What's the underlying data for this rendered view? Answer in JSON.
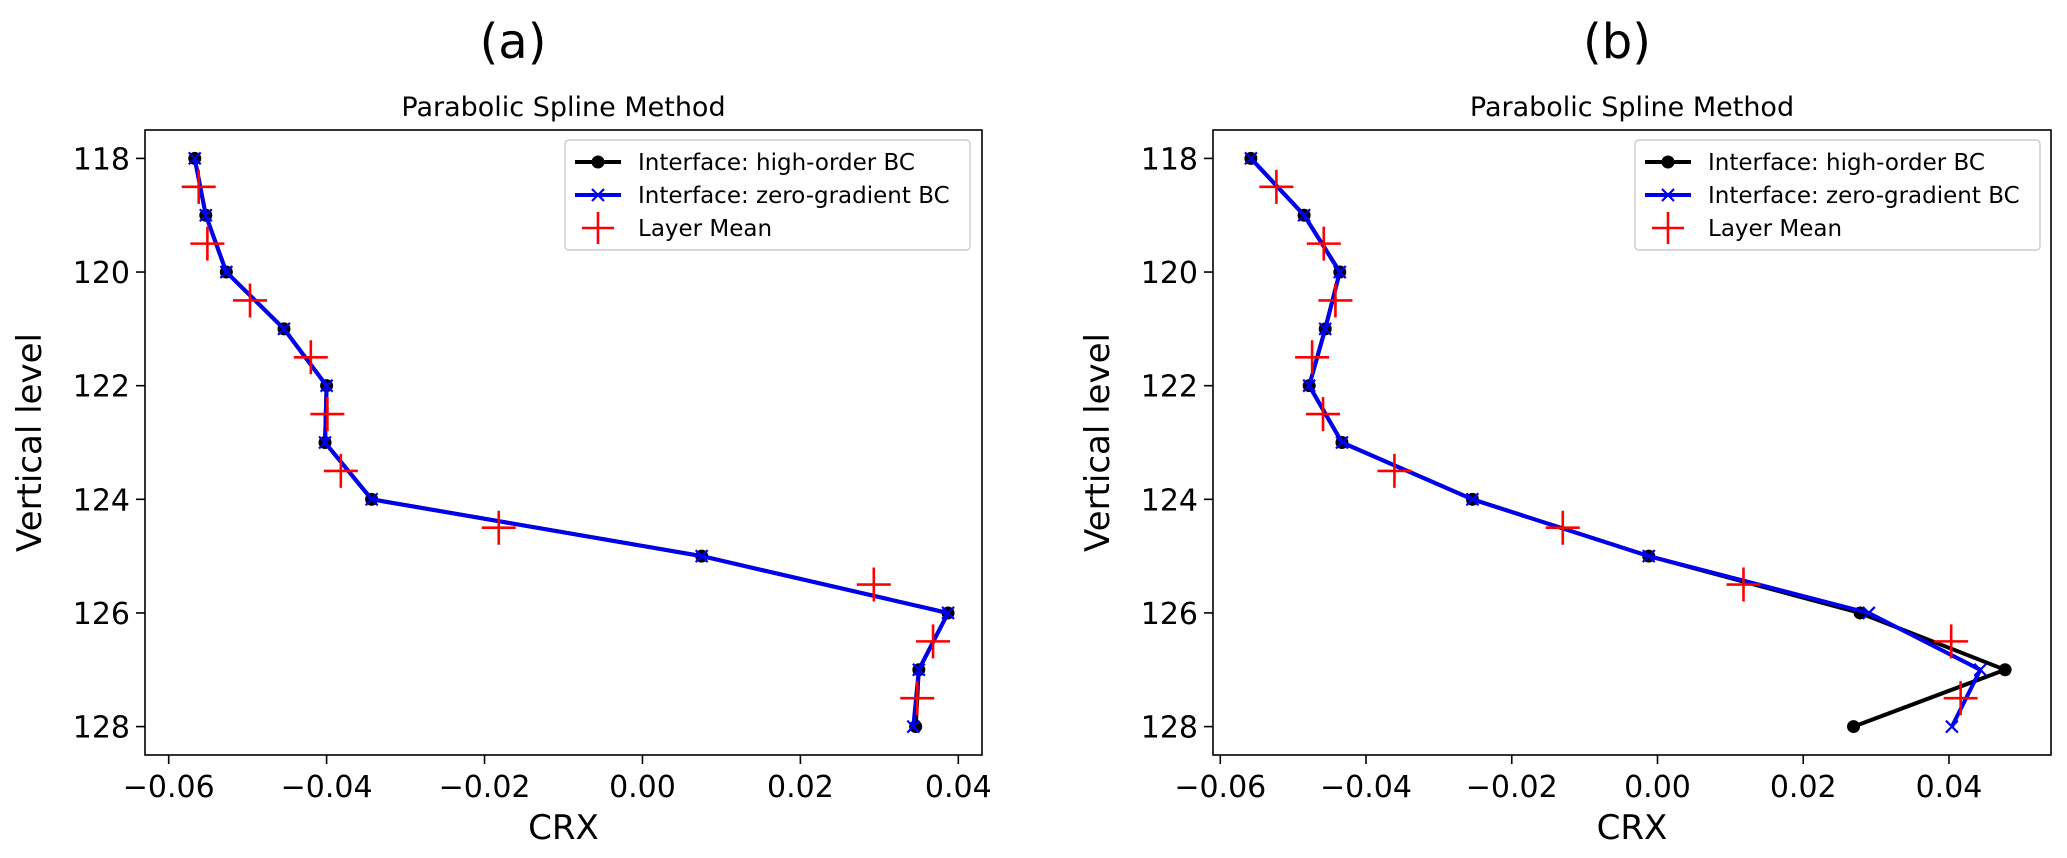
{
  "panels": [
    {
      "letter": "(a)",
      "chart_data": {
        "type": "line",
        "title": "Parabolic Spline Method",
        "xlabel": "CRX",
        "ylabel": "Vertical level",
        "xlim": [
          -0.063,
          0.043
        ],
        "ylim": [
          128.5,
          117.5
        ],
        "y_inverted": true,
        "xticks": [
          -0.06,
          -0.04,
          -0.02,
          0.0,
          0.02,
          0.04
        ],
        "xtick_labels": [
          "−0.06",
          "−0.04",
          "−0.02",
          "0.00",
          "0.02",
          "0.04"
        ],
        "yticks": [
          118,
          120,
          122,
          124,
          126,
          128
        ],
        "ytick_labels": [
          "118",
          "120",
          "122",
          "124",
          "126",
          "128"
        ],
        "legend_position": "top-right",
        "grid": false,
        "series": [
          {
            "name": "Interface: high-order BC",
            "color": "#000000",
            "marker": "circle",
            "points": [
              [
                -0.0567,
                118
              ],
              [
                -0.0553,
                119
              ],
              [
                -0.0527,
                120
              ],
              [
                -0.0454,
                121
              ],
              [
                -0.04,
                122
              ],
              [
                -0.0402,
                123
              ],
              [
                -0.0343,
                124
              ],
              [
                0.0075,
                125
              ],
              [
                0.0387,
                126
              ],
              [
                0.035,
                127
              ],
              [
                0.0346,
                128
              ]
            ]
          },
          {
            "name": "Interface: zero-gradient BC",
            "color": "#0000ee",
            "marker": "x",
            "points": [
              [
                -0.0567,
                118
              ],
              [
                -0.0553,
                119
              ],
              [
                -0.0527,
                120
              ],
              [
                -0.0454,
                121
              ],
              [
                -0.04,
                122
              ],
              [
                -0.0402,
                123
              ],
              [
                -0.0343,
                124
              ],
              [
                0.0075,
                125
              ],
              [
                0.0387,
                126
              ],
              [
                0.035,
                127
              ],
              [
                0.0343,
                128
              ]
            ]
          },
          {
            "name": "Layer Mean",
            "color": "#ff0000",
            "marker": "plus",
            "points": [
              [
                -0.0562,
                118.5
              ],
              [
                -0.0551,
                119.5
              ],
              [
                -0.0497,
                120.5
              ],
              [
                -0.042,
                121.5
              ],
              [
                -0.0399,
                122.5
              ],
              [
                -0.0382,
                123.5
              ],
              [
                -0.0182,
                124.5
              ],
              [
                0.0293,
                125.5
              ],
              [
                0.0368,
                126.5
              ],
              [
                0.0348,
                127.5
              ]
            ]
          }
        ]
      }
    },
    {
      "letter": "(b)",
      "chart_data": {
        "type": "line",
        "title": "Parabolic Spline Method",
        "xlabel": "CRX",
        "ylabel": "Vertical level",
        "xlim": [
          -0.061,
          0.054
        ],
        "ylim": [
          128.5,
          117.5
        ],
        "y_inverted": true,
        "xticks": [
          -0.06,
          -0.04,
          -0.02,
          0.0,
          0.02,
          0.04
        ],
        "xtick_labels": [
          "−0.06",
          "−0.04",
          "−0.02",
          "0.00",
          "0.02",
          "0.04"
        ],
        "yticks": [
          118,
          120,
          122,
          124,
          126,
          128
        ],
        "ytick_labels": [
          "118",
          "120",
          "122",
          "124",
          "126",
          "128"
        ],
        "legend_position": "top-right",
        "grid": false,
        "series": [
          {
            "name": "Interface: high-order BC",
            "color": "#000000",
            "marker": "circle",
            "points": [
              [
                -0.0558,
                118
              ],
              [
                -0.0485,
                119
              ],
              [
                -0.0436,
                120
              ],
              [
                -0.0456,
                121
              ],
              [
                -0.0478,
                122
              ],
              [
                -0.0433,
                123
              ],
              [
                -0.0254,
                124
              ],
              [
                -0.0012,
                125
              ],
              [
                0.0278,
                126
              ],
              [
                0.0477,
                127
              ],
              [
                0.0269,
                128
              ]
            ]
          },
          {
            "name": "Interface: zero-gradient BC",
            "color": "#0000ee",
            "marker": "x",
            "points": [
              [
                -0.0558,
                118
              ],
              [
                -0.0485,
                119
              ],
              [
                -0.0436,
                120
              ],
              [
                -0.0456,
                121
              ],
              [
                -0.0478,
                122
              ],
              [
                -0.0433,
                123
              ],
              [
                -0.0254,
                124
              ],
              [
                -0.0012,
                125
              ],
              [
                0.029,
                126
              ],
              [
                0.0443,
                127
              ],
              [
                0.0404,
                128
              ]
            ]
          },
          {
            "name": "Layer Mean",
            "color": "#ff0000",
            "marker": "plus",
            "points": [
              [
                -0.0523,
                118.5
              ],
              [
                -0.0458,
                119.5
              ],
              [
                -0.0442,
                120.5
              ],
              [
                -0.0474,
                121.5
              ],
              [
                -0.0459,
                122.5
              ],
              [
                -0.0361,
                123.5
              ],
              [
                -0.013,
                124.5
              ],
              [
                0.0118,
                125.5
              ],
              [
                0.0403,
                126.5
              ],
              [
                0.0416,
                127.5
              ]
            ]
          }
        ]
      }
    }
  ]
}
